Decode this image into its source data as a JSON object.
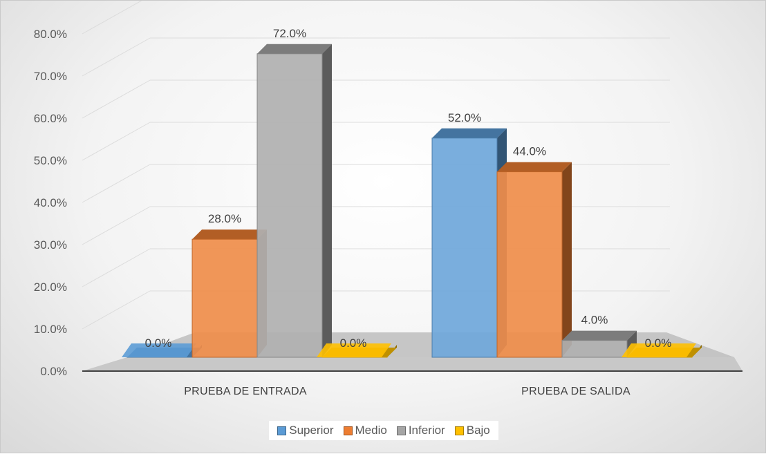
{
  "chart_data": {
    "type": "bar",
    "categories": [
      "PRUEBA DE ENTRADA",
      "PRUEBA DE SALIDA"
    ],
    "series": [
      {
        "name": "Superior",
        "values": [
          0.0,
          52.0
        ],
        "color": "#5B9BD5"
      },
      {
        "name": "Medio",
        "values": [
          28.0,
          44.0
        ],
        "color": "#ED7D31"
      },
      {
        "name": "Inferior",
        "values": [
          72.0,
          4.0
        ],
        "color": "#A5A5A5"
      },
      {
        "name": "Bajo",
        "values": [
          0.0,
          0.0
        ],
        "color": "#FFC000"
      }
    ],
    "data_labels": [
      [
        "0.0%",
        "52.0%"
      ],
      [
        "28.0%",
        "44.0%"
      ],
      [
        "72.0%",
        "4.0%"
      ],
      [
        "0.0%",
        "0.0%"
      ]
    ],
    "yticks": [
      "0.0%",
      "10.0%",
      "20.0%",
      "30.0%",
      "40.0%",
      "50.0%",
      "60.0%",
      "70.0%",
      "80.0%"
    ],
    "ylim": [
      0,
      80
    ],
    "grid": true,
    "legend_position": "bottom",
    "style": "3d-clustered-column"
  }
}
